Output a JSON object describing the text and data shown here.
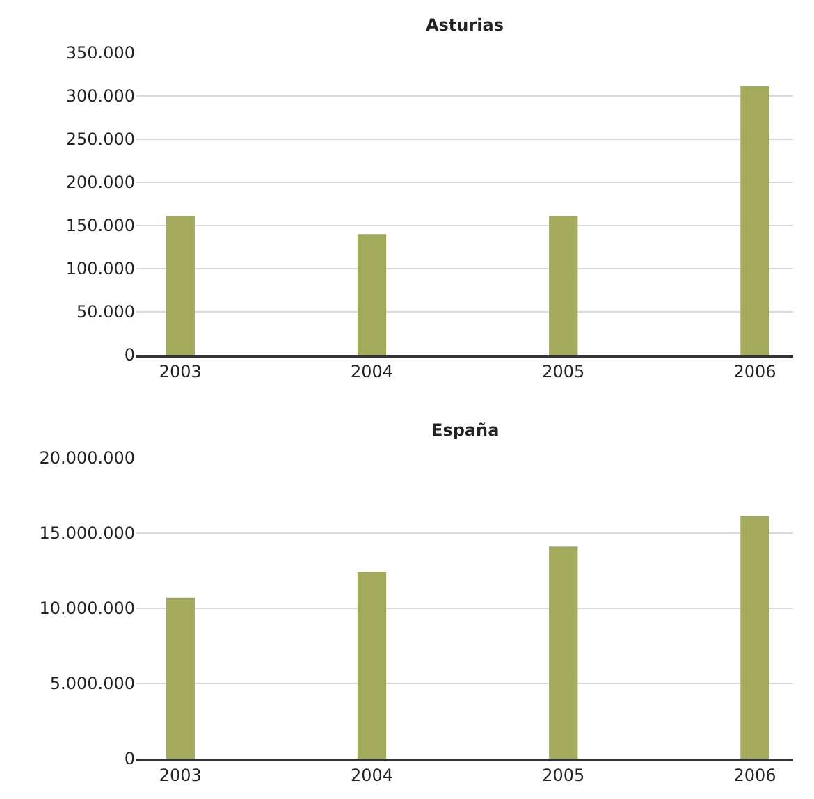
{
  "chart_data": [
    {
      "type": "bar",
      "title": "Asturias",
      "categories": [
        "2003",
        "2004",
        "2005",
        "2006"
      ],
      "values": [
        161000,
        140000,
        161000,
        311000
      ],
      "color": "#a3aa5c",
      "ylim": [
        0,
        350000
      ],
      "yticks": [
        {
          "value": 0,
          "label": "0"
        },
        {
          "value": 50000,
          "label": "50.000"
        },
        {
          "value": 100000,
          "label": "100.000"
        },
        {
          "value": 150000,
          "label": "150.000"
        },
        {
          "value": 200000,
          "label": "200.000"
        },
        {
          "value": 250000,
          "label": "250.000"
        },
        {
          "value": 300000,
          "label": "300.000"
        },
        {
          "value": 350000,
          "label": "350.000"
        }
      ],
      "grid": "y"
    },
    {
      "type": "bar",
      "title": "España",
      "categories": [
        "2003",
        "2004",
        "2005",
        "2006"
      ],
      "values": [
        10700000,
        12400000,
        14100000,
        16100000
      ],
      "color": "#a3aa5c",
      "ylim": [
        0,
        20000000
      ],
      "yticks": [
        {
          "value": 0,
          "label": "0"
        },
        {
          "value": 5000000,
          "label": "5.000.000"
        },
        {
          "value": 10000000,
          "label": "10.000.000"
        },
        {
          "value": 15000000,
          "label": "15.000.000"
        },
        {
          "value": 20000000,
          "label": "20.000.000"
        }
      ],
      "grid": "y"
    }
  ]
}
